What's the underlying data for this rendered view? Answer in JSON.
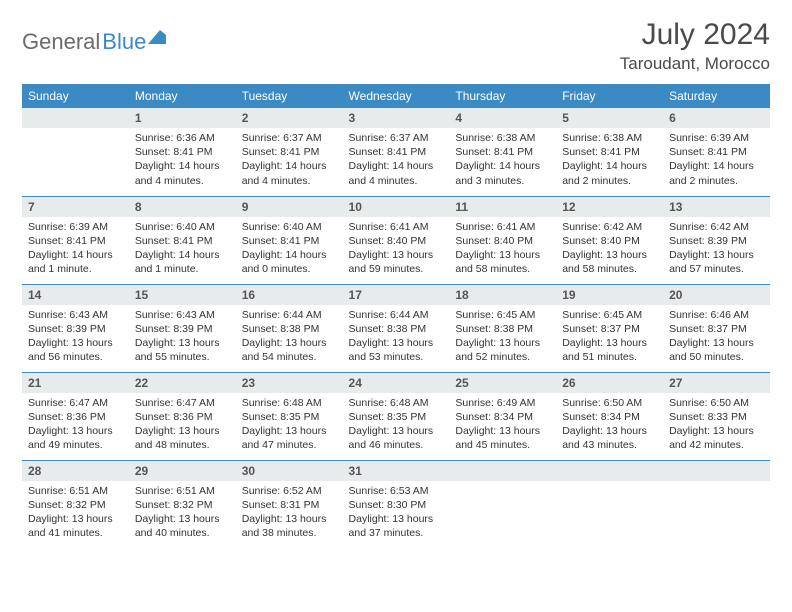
{
  "logo": {
    "gray": "General",
    "blue": "Blue"
  },
  "title": "July 2024",
  "location": "Taroudant, Morocco",
  "colors": {
    "header_bg": "#3b8ac4",
    "header_fg": "#ffffff",
    "daynum_bg": "#e8ebec",
    "rule": "#3b8ac4"
  },
  "weekdays": [
    "Sunday",
    "Monday",
    "Tuesday",
    "Wednesday",
    "Thursday",
    "Friday",
    "Saturday"
  ],
  "weeks": [
    [
      null,
      {
        "n": "1",
        "sunrise": "6:36 AM",
        "sunset": "8:41 PM",
        "daylight": "14 hours and 4 minutes."
      },
      {
        "n": "2",
        "sunrise": "6:37 AM",
        "sunset": "8:41 PM",
        "daylight": "14 hours and 4 minutes."
      },
      {
        "n": "3",
        "sunrise": "6:37 AM",
        "sunset": "8:41 PM",
        "daylight": "14 hours and 4 minutes."
      },
      {
        "n": "4",
        "sunrise": "6:38 AM",
        "sunset": "8:41 PM",
        "daylight": "14 hours and 3 minutes."
      },
      {
        "n": "5",
        "sunrise": "6:38 AM",
        "sunset": "8:41 PM",
        "daylight": "14 hours and 2 minutes."
      },
      {
        "n": "6",
        "sunrise": "6:39 AM",
        "sunset": "8:41 PM",
        "daylight": "14 hours and 2 minutes."
      }
    ],
    [
      {
        "n": "7",
        "sunrise": "6:39 AM",
        "sunset": "8:41 PM",
        "daylight": "14 hours and 1 minute."
      },
      {
        "n": "8",
        "sunrise": "6:40 AM",
        "sunset": "8:41 PM",
        "daylight": "14 hours and 1 minute."
      },
      {
        "n": "9",
        "sunrise": "6:40 AM",
        "sunset": "8:41 PM",
        "daylight": "14 hours and 0 minutes."
      },
      {
        "n": "10",
        "sunrise": "6:41 AM",
        "sunset": "8:40 PM",
        "daylight": "13 hours and 59 minutes."
      },
      {
        "n": "11",
        "sunrise": "6:41 AM",
        "sunset": "8:40 PM",
        "daylight": "13 hours and 58 minutes."
      },
      {
        "n": "12",
        "sunrise": "6:42 AM",
        "sunset": "8:40 PM",
        "daylight": "13 hours and 58 minutes."
      },
      {
        "n": "13",
        "sunrise": "6:42 AM",
        "sunset": "8:39 PM",
        "daylight": "13 hours and 57 minutes."
      }
    ],
    [
      {
        "n": "14",
        "sunrise": "6:43 AM",
        "sunset": "8:39 PM",
        "daylight": "13 hours and 56 minutes."
      },
      {
        "n": "15",
        "sunrise": "6:43 AM",
        "sunset": "8:39 PM",
        "daylight": "13 hours and 55 minutes."
      },
      {
        "n": "16",
        "sunrise": "6:44 AM",
        "sunset": "8:38 PM",
        "daylight": "13 hours and 54 minutes."
      },
      {
        "n": "17",
        "sunrise": "6:44 AM",
        "sunset": "8:38 PM",
        "daylight": "13 hours and 53 minutes."
      },
      {
        "n": "18",
        "sunrise": "6:45 AM",
        "sunset": "8:38 PM",
        "daylight": "13 hours and 52 minutes."
      },
      {
        "n": "19",
        "sunrise": "6:45 AM",
        "sunset": "8:37 PM",
        "daylight": "13 hours and 51 minutes."
      },
      {
        "n": "20",
        "sunrise": "6:46 AM",
        "sunset": "8:37 PM",
        "daylight": "13 hours and 50 minutes."
      }
    ],
    [
      {
        "n": "21",
        "sunrise": "6:47 AM",
        "sunset": "8:36 PM",
        "daylight": "13 hours and 49 minutes."
      },
      {
        "n": "22",
        "sunrise": "6:47 AM",
        "sunset": "8:36 PM",
        "daylight": "13 hours and 48 minutes."
      },
      {
        "n": "23",
        "sunrise": "6:48 AM",
        "sunset": "8:35 PM",
        "daylight": "13 hours and 47 minutes."
      },
      {
        "n": "24",
        "sunrise": "6:48 AM",
        "sunset": "8:35 PM",
        "daylight": "13 hours and 46 minutes."
      },
      {
        "n": "25",
        "sunrise": "6:49 AM",
        "sunset": "8:34 PM",
        "daylight": "13 hours and 45 minutes."
      },
      {
        "n": "26",
        "sunrise": "6:50 AM",
        "sunset": "8:34 PM",
        "daylight": "13 hours and 43 minutes."
      },
      {
        "n": "27",
        "sunrise": "6:50 AM",
        "sunset": "8:33 PM",
        "daylight": "13 hours and 42 minutes."
      }
    ],
    [
      {
        "n": "28",
        "sunrise": "6:51 AM",
        "sunset": "8:32 PM",
        "daylight": "13 hours and 41 minutes."
      },
      {
        "n": "29",
        "sunrise": "6:51 AM",
        "sunset": "8:32 PM",
        "daylight": "13 hours and 40 minutes."
      },
      {
        "n": "30",
        "sunrise": "6:52 AM",
        "sunset": "8:31 PM",
        "daylight": "13 hours and 38 minutes."
      },
      {
        "n": "31",
        "sunrise": "6:53 AM",
        "sunset": "8:30 PM",
        "daylight": "13 hours and 37 minutes."
      },
      null,
      null,
      null
    ]
  ],
  "labels": {
    "sunrise": "Sunrise:",
    "sunset": "Sunset:",
    "daylight": "Daylight:"
  }
}
